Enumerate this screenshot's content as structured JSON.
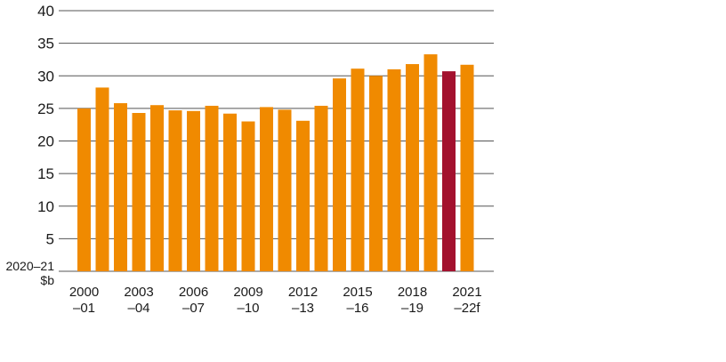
{
  "chart_data": {
    "type": "bar",
    "unit_line1": "2020–21",
    "unit_line2": "$b",
    "ylim": [
      0,
      40
    ],
    "yticks": [
      40,
      35,
      30,
      25,
      20,
      15,
      10,
      5
    ],
    "values": [
      25.0,
      28.2,
      25.8,
      24.3,
      25.5,
      24.7,
      24.6,
      25.4,
      24.2,
      23.0,
      25.2,
      24.8,
      23.1,
      25.4,
      29.6,
      31.1,
      30.0,
      31.0,
      31.8,
      33.3,
      30.7,
      31.7
    ],
    "bar_colors": [
      "#f08a00",
      "#f08a00",
      "#f08a00",
      "#f08a00",
      "#f08a00",
      "#f08a00",
      "#f08a00",
      "#f08a00",
      "#f08a00",
      "#f08a00",
      "#f08a00",
      "#f08a00",
      "#f08a00",
      "#f08a00",
      "#f08a00",
      "#f08a00",
      "#f08a00",
      "#f08a00",
      "#f08a00",
      "#f08a00",
      "#a3112e",
      "#f08a00"
    ],
    "category_labels": [
      {
        "index": 0,
        "line1": "2000",
        "line2": "–01"
      },
      {
        "index": 3,
        "line1": "2003",
        "line2": "–04"
      },
      {
        "index": 6,
        "line1": "2006",
        "line2": "–07"
      },
      {
        "index": 9,
        "line1": "2009",
        "line2": "–10"
      },
      {
        "index": 12,
        "line1": "2012",
        "line2": "–13"
      },
      {
        "index": 15,
        "line1": "2015",
        "line2": "–16"
      },
      {
        "index": 18,
        "line1": "2018",
        "line2": "–19"
      },
      {
        "index": 21,
        "line1": "2021",
        "line2": "–22f"
      }
    ],
    "grid": true,
    "colors": {
      "default_bar": "#f08a00",
      "highlight_bar": "#a3112e",
      "grid": "#555555"
    }
  }
}
